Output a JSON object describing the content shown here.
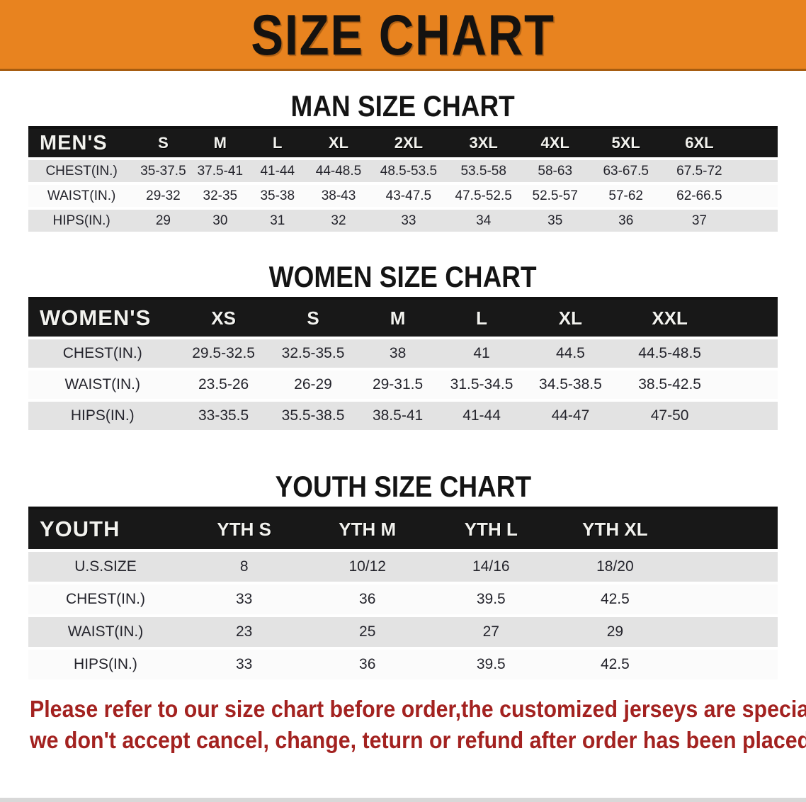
{
  "banner": {
    "title": "SIZE CHART",
    "background_color": "#e8831f",
    "text_color": "#141210"
  },
  "sections": [
    {
      "heading": "MAN SIZE CHART",
      "table": {
        "header_label": "MEN'S",
        "columns": [
          "S",
          "M",
          "L",
          "XL",
          "2XL",
          "3XL",
          "4XL",
          "5XL",
          "6XL"
        ],
        "rows": [
          {
            "label": "CHEST(IN.)",
            "values": [
              "35-37.5",
              "37.5-41",
              "41-44",
              "44-48.5",
              "48.5-53.5",
              "53.5-58",
              "58-63",
              "63-67.5",
              "67.5-72"
            ]
          },
          {
            "label": "WAIST(IN.)",
            "values": [
              "29-32",
              "32-35",
              "35-38",
              "38-43",
              "43-47.5",
              "47.5-52.5",
              "52.5-57",
              "57-62",
              "62-66.5"
            ]
          },
          {
            "label": "HIPS(IN.)",
            "values": [
              "29",
              "30",
              "31",
              "32",
              "33",
              "34",
              "35",
              "36",
              "37"
            ]
          }
        ]
      }
    },
    {
      "heading": "WOMEN SIZE CHART",
      "table": {
        "header_label": "WOMEN'S",
        "columns": [
          "XS",
          "S",
          "M",
          "L",
          "XL",
          "XXL"
        ],
        "rows": [
          {
            "label": "CHEST(IN.)",
            "values": [
              "29.5-32.5",
              "32.5-35.5",
              "38",
              "41",
              "44.5",
              "44.5-48.5"
            ]
          },
          {
            "label": "WAIST(IN.)",
            "values": [
              "23.5-26",
              "26-29",
              "29-31.5",
              "31.5-34.5",
              "34.5-38.5",
              "38.5-42.5"
            ]
          },
          {
            "label": "HIPS(IN.)",
            "values": [
              "33-35.5",
              "35.5-38.5",
              "38.5-41",
              "41-44",
              "44-47",
              "47-50"
            ]
          }
        ]
      }
    },
    {
      "heading": "YOUTH SIZE CHART",
      "table": {
        "header_label": "YOUTH",
        "columns": [
          "YTH S",
          "YTH M",
          "YTH L",
          "YTH XL"
        ],
        "rows": [
          {
            "label": "U.S.SIZE",
            "values": [
              "8",
              "10/12",
              "14/16",
              "18/20"
            ]
          },
          {
            "label": "CHEST(IN.)",
            "values": [
              "33",
              "36",
              "39.5",
              "42.5"
            ]
          },
          {
            "label": "WAIST(IN.)",
            "values": [
              "23",
              "25",
              "27",
              "29"
            ]
          },
          {
            "label": "HIPS(IN.)",
            "values": [
              "33",
              "36",
              "39.5",
              "42.5"
            ]
          }
        ]
      }
    }
  ],
  "footnote": {
    "line1": "Please refer to our size chart before order,the customized jerseys are special products,",
    "line2": "we don't accept cancel, change, teturn or refund after order has been placed!",
    "color": "#a32220"
  },
  "stripe_colors": {
    "gray": "#e3e3e3",
    "white": "#fbfbfb",
    "header": "#181818"
  }
}
